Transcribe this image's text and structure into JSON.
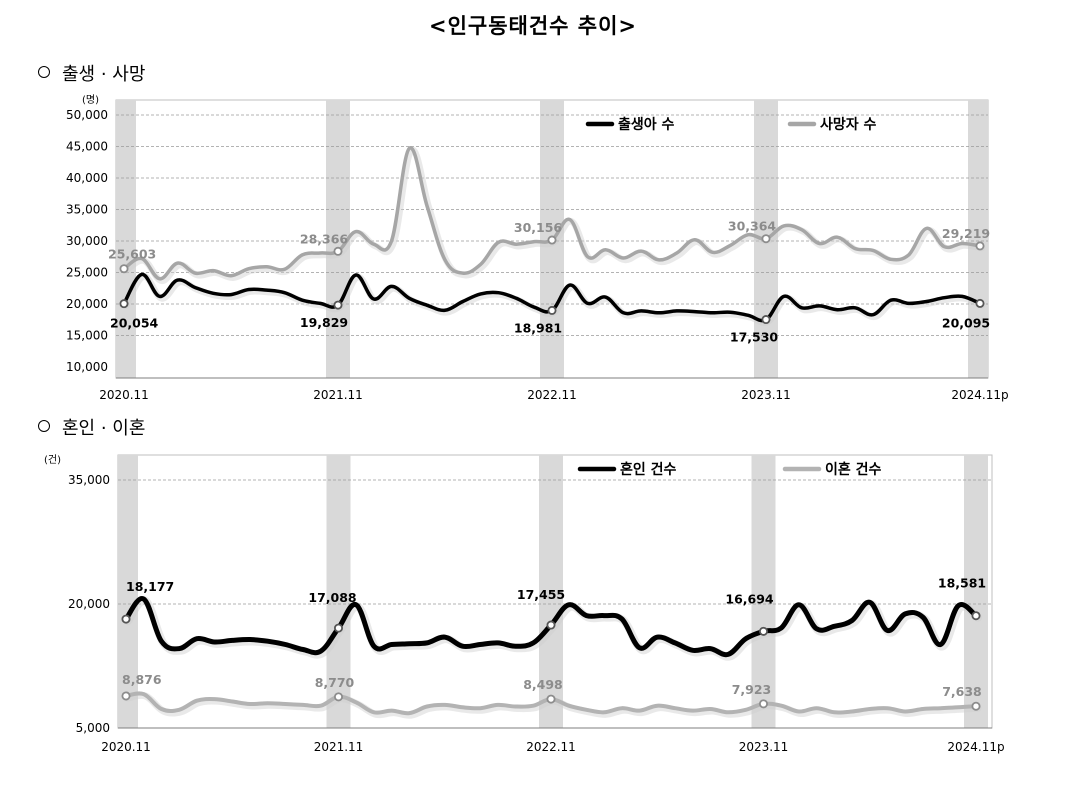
{
  "page": {
    "title": "<인구동태건수 추이>"
  },
  "chart_data": [
    {
      "type": "line",
      "section_title": "출생 · 사망",
      "unit": "(명)",
      "ylim": [
        10000,
        50000
      ],
      "y_ticks": [
        10000,
        15000,
        20000,
        25000,
        30000,
        35000,
        40000,
        45000,
        50000
      ],
      "y_tick_labels": [
        "10,000",
        "15,000",
        "20,000",
        "25,000",
        "30,000",
        "35,000",
        "40,000",
        "45,000",
        "50,000"
      ],
      "x_tick_labels": [
        "2020.11",
        "2021.11",
        "2022.11",
        "2023.11",
        "2024.11p"
      ],
      "x_tick_index": [
        0,
        12,
        24,
        36,
        48
      ],
      "highlight_months": [
        0,
        12,
        24,
        36,
        48
      ],
      "grid": true,
      "legend_position": "top-right",
      "series": [
        {
          "name": "출생아 수",
          "color": "#000000",
          "values": [
            20054,
            24700,
            21200,
            23800,
            22600,
            21700,
            21500,
            22300,
            22200,
            21800,
            20600,
            20100,
            19829,
            24600,
            20800,
            22800,
            20900,
            19800,
            19000,
            20400,
            21600,
            21800,
            20900,
            19500,
            18981,
            23000,
            20100,
            21100,
            18600,
            18900,
            18600,
            18900,
            18800,
            18600,
            18700,
            18200,
            17530,
            21200,
            19400,
            19700,
            19100,
            19400,
            18300,
            20600,
            20100,
            20400,
            21000,
            21200,
            20095
          ],
          "point_labels": [
            {
              "index": 0,
              "text": "20,054"
            },
            {
              "index": 12,
              "text": "19,829"
            },
            {
              "index": 24,
              "text": "18,981"
            },
            {
              "index": 36,
              "text": "17,530"
            },
            {
              "index": 48,
              "text": "20,095"
            }
          ]
        },
        {
          "name": "사망자 수",
          "color": "#a6a6a6",
          "values": [
            25603,
            27200,
            24000,
            26500,
            24900,
            25300,
            24500,
            25600,
            25900,
            25500,
            27800,
            28100,
            28366,
            31500,
            29500,
            30000,
            44700,
            35500,
            27000,
            24900,
            26300,
            29800,
            29500,
            29900,
            30156,
            33400,
            27500,
            28600,
            27300,
            28400,
            27000,
            28100,
            30200,
            28200,
            29300,
            31000,
            30364,
            32400,
            31800,
            29600,
            30600,
            28800,
            28500,
            27100,
            27800,
            32000,
            29100,
            29600,
            29219
          ],
          "point_labels": [
            {
              "index": 0,
              "text": "25,603"
            },
            {
              "index": 12,
              "text": "28,366"
            },
            {
              "index": 24,
              "text": "30,156"
            },
            {
              "index": 36,
              "text": "30,364"
            },
            {
              "index": 48,
              "text": "29,219"
            }
          ]
        }
      ]
    },
    {
      "type": "line",
      "section_title": "혼인 · 이혼",
      "unit": "(건)",
      "ylim": [
        5000,
        35000
      ],
      "y_ticks": [
        5000,
        20000,
        35000
      ],
      "y_tick_labels": [
        "5,000",
        "20,000",
        "35,000"
      ],
      "x_tick_labels": [
        "2020.11",
        "2021.11",
        "2022.11",
        "2023.11",
        "2024.11p"
      ],
      "x_tick_index": [
        0,
        12,
        24,
        36,
        48
      ],
      "highlight_months": [
        0,
        12,
        24,
        36,
        48
      ],
      "grid": true,
      "legend_position": "top-right",
      "series": [
        {
          "name": "혼인 건수",
          "color": "#000000",
          "values": [
            18177,
            20600,
            15500,
            14600,
            15800,
            15400,
            15600,
            15700,
            15500,
            15100,
            14500,
            14300,
            17088,
            19900,
            14900,
            15100,
            15200,
            15300,
            16000,
            14900,
            15100,
            15300,
            14900,
            15300,
            17455,
            19900,
            18600,
            18600,
            18200,
            14700,
            16000,
            15300,
            14400,
            14600,
            13900,
            15800,
            16694,
            17100,
            19900,
            17000,
            17300,
            18000,
            20200,
            16800,
            18800,
            18400,
            15100,
            19800,
            18581
          ],
          "point_labels": [
            {
              "index": 0,
              "text": "18,177"
            },
            {
              "index": 12,
              "text": "17,088"
            },
            {
              "index": 24,
              "text": "17,455"
            },
            {
              "index": 36,
              "text": "16,694"
            },
            {
              "index": 48,
              "text": "18,581"
            }
          ]
        },
        {
          "name": "이혼 건수",
          "color": "#b3b3b3",
          "values": [
            8876,
            9100,
            7300,
            7200,
            8300,
            8500,
            8200,
            7900,
            8000,
            7900,
            7800,
            7700,
            8770,
            8100,
            6900,
            7100,
            6800,
            7600,
            7800,
            7500,
            7400,
            7800,
            7600,
            7700,
            8498,
            7700,
            7200,
            6900,
            7400,
            7100,
            7700,
            7400,
            7100,
            7300,
            6900,
            7200,
            7923,
            7700,
            7000,
            7400,
            6900,
            7000,
            7300,
            7400,
            7000,
            7300,
            7400,
            7500,
            7638
          ],
          "point_labels": [
            {
              "index": 0,
              "text": "8,876"
            },
            {
              "index": 12,
              "text": "8,770"
            },
            {
              "index": 24,
              "text": "8,498"
            },
            {
              "index": 36,
              "text": "7,923"
            },
            {
              "index": 48,
              "text": "7,638"
            }
          ]
        }
      ]
    }
  ]
}
